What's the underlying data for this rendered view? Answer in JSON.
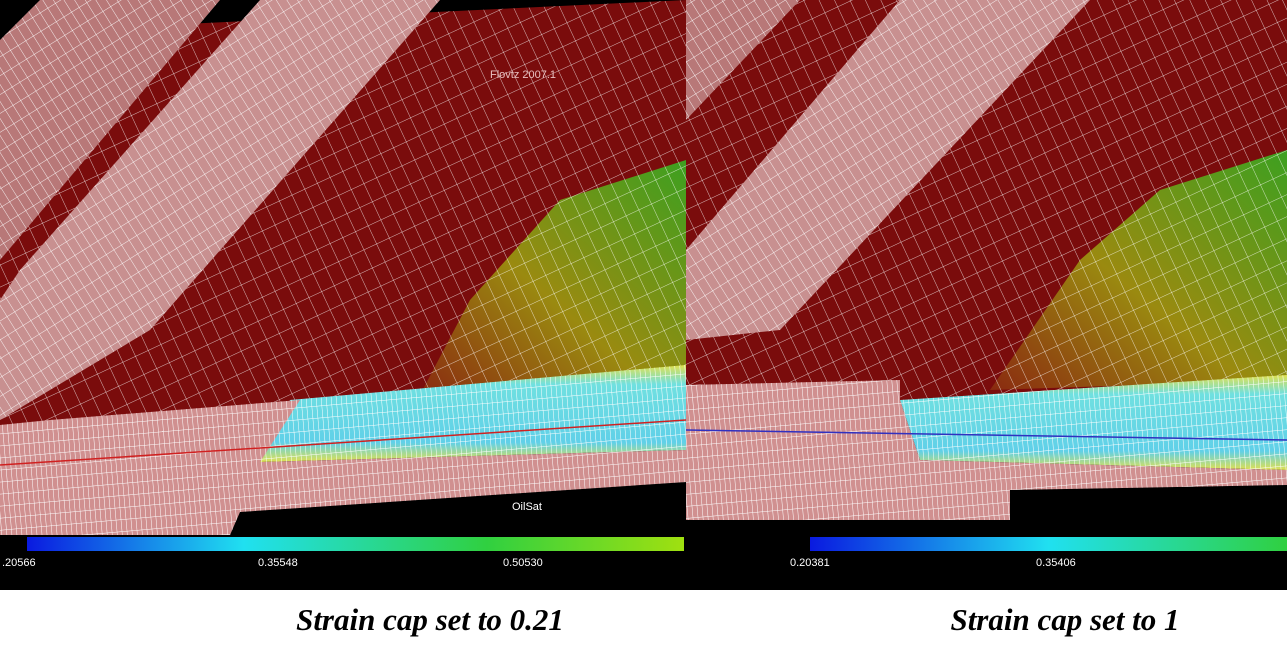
{
  "panels": [
    {
      "watermark": "Flovtz 2007.1",
      "colorbar_title": "OilSat",
      "colorbar_labels": [
        ".20566",
        "0.35548",
        "0.50530"
      ],
      "caption": "Strain cap set to 0.21"
    },
    {
      "colorbar_labels": [
        "0.20381",
        "0.35406"
      ],
      "caption": "Strain cap set to 1"
    }
  ]
}
